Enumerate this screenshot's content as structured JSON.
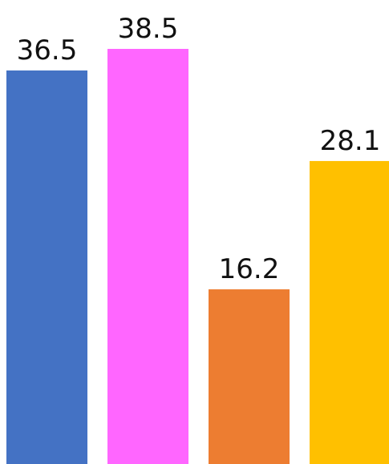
{
  "chart_data": {
    "type": "bar",
    "values": [
      36.5,
      38.5,
      16.2,
      28.1
    ],
    "labels": [
      "36.5",
      "38.5",
      "16.2",
      "28.1"
    ],
    "colors": [
      "#4472C4",
      "#FF66FF",
      "#ED7D31",
      "#FFC000"
    ],
    "ylim": [
      0,
      38.5
    ],
    "grid": false,
    "legend": "none"
  }
}
